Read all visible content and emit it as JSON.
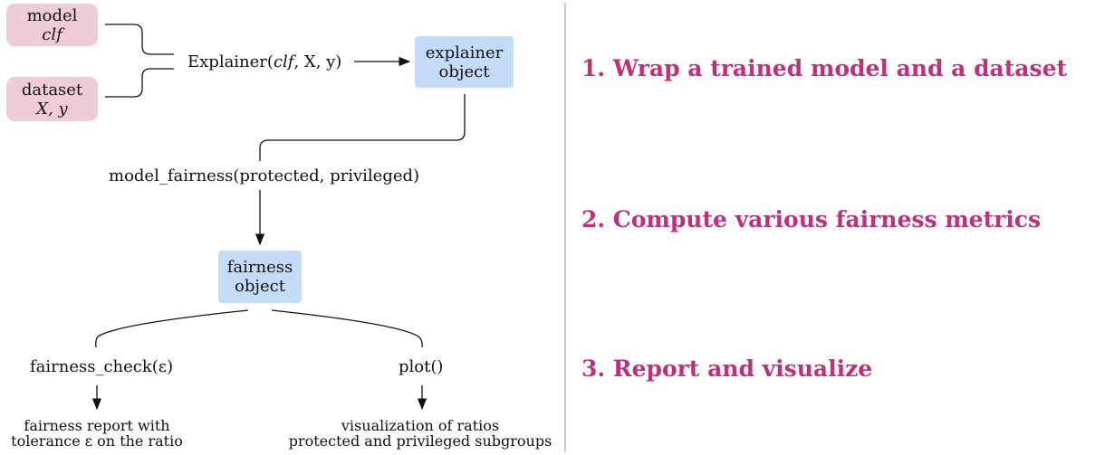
{
  "diagram": {
    "model_box": {
      "line1": "model",
      "line2": "clf"
    },
    "dataset_box": {
      "line1": "dataset",
      "line2": "X, y"
    },
    "explainer_call": {
      "prefix": "Explainer(",
      "arg_italic": "clf",
      "suffix": ", X, y)"
    },
    "explainer_box": {
      "line1": "explainer",
      "line2": "object"
    },
    "model_fairness_call": "model_fairness(protected, privileged)",
    "fairness_box": {
      "line1": "fairness",
      "line2": "object"
    },
    "fairness_check_call": "fairness_check(ε)",
    "plot_call": "plot()",
    "report_output": {
      "line1": "fairness report with",
      "line2": "tolerance ε on the ratio"
    },
    "visual_output": {
      "line1": "visualization of ratios",
      "line2": "protected and privileged subgroups"
    }
  },
  "steps": [
    "1. Wrap a trained model and a dataset",
    "2. Compute various fairness metrics",
    "3. Report and visualize"
  ],
  "colors": {
    "input_box": "#efcdd8",
    "object_box": "#c5dcf8",
    "step_text": "#c0307a",
    "divider": "#c9c9c9"
  }
}
